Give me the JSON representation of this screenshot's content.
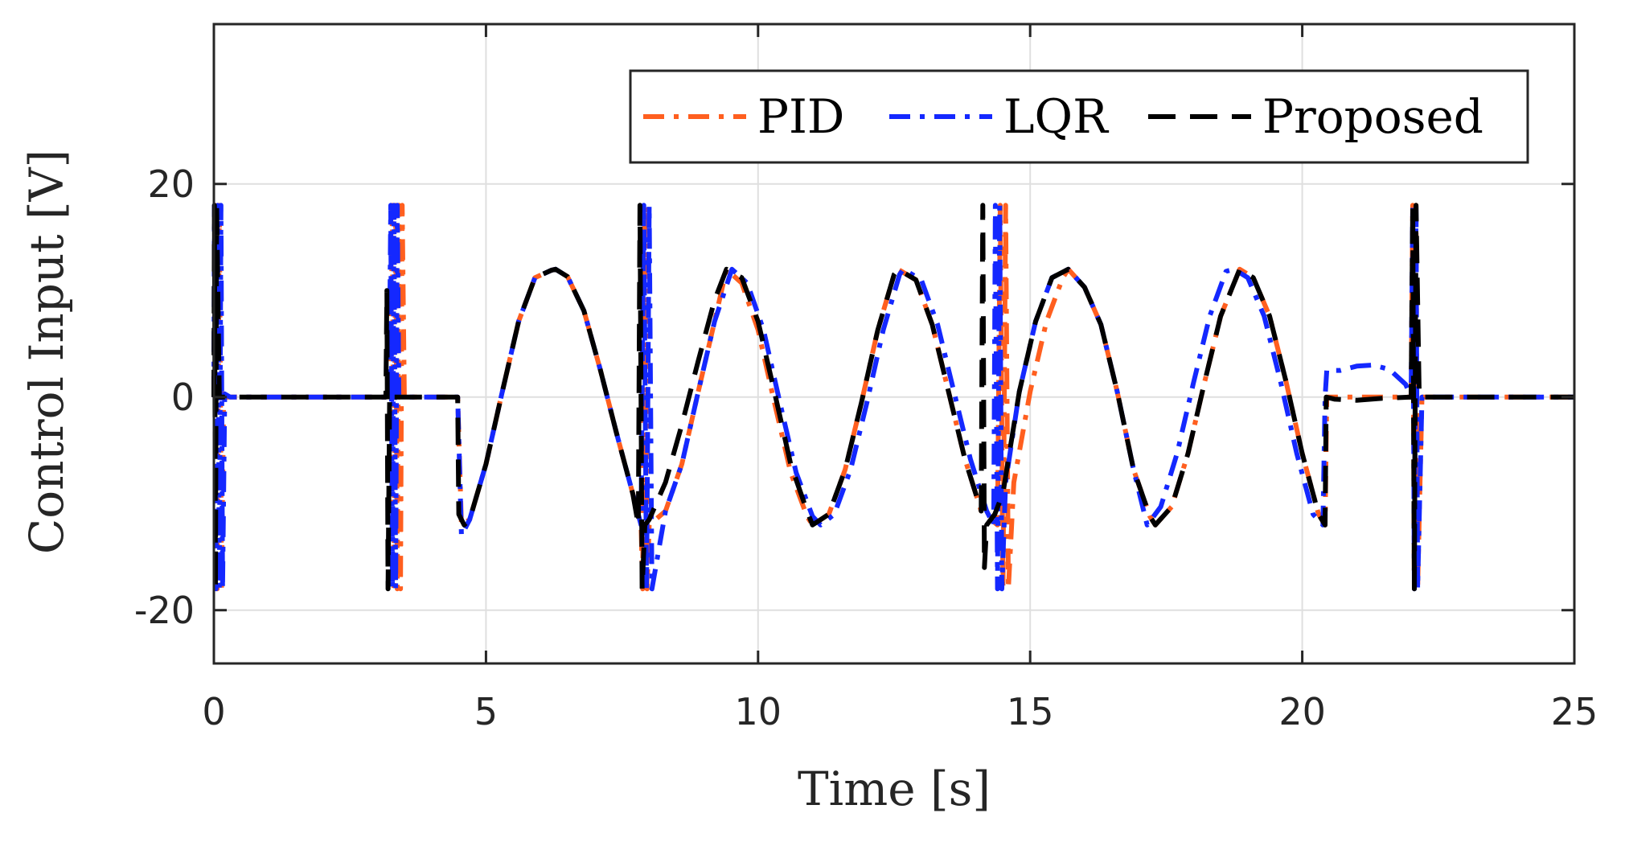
{
  "chart_data": {
    "type": "line",
    "xlabel": "Time [s]",
    "ylabel": "Control Input [V]",
    "xlim": [
      0,
      25
    ],
    "ylim": [
      -25,
      35
    ],
    "xticks": [
      0,
      5,
      10,
      15,
      20,
      25
    ],
    "yticks": [
      -20,
      0,
      20
    ],
    "xtick_labels": [
      "0",
      "5",
      "10",
      "15",
      "20",
      "25"
    ],
    "ytick_labels": [
      "-20",
      "0",
      "20"
    ],
    "grid": true,
    "legend_position": "top-right",
    "series": [
      {
        "name": "PID",
        "color": "#ff5f1f",
        "style": "dash-dot",
        "x": [
          0,
          0.02,
          0.06,
          0.1,
          0.14,
          0.18,
          0.25,
          3.25,
          3.28,
          3.31,
          3.34,
          3.37,
          3.4,
          3.43,
          3.46,
          3.5,
          4.48,
          4.55,
          4.7,
          5.0,
          5.3,
          5.6,
          5.9,
          6.2,
          6.28,
          6.5,
          6.8,
          7.1,
          7.4,
          7.7,
          7.85,
          7.88,
          7.92,
          7.96,
          8.0,
          8.3,
          8.6,
          8.9,
          9.2,
          9.42,
          9.7,
          10.0,
          10.3,
          10.6,
          10.9,
          11.0,
          11.3,
          11.6,
          11.9,
          12.2,
          12.5,
          12.57,
          12.9,
          13.2,
          13.5,
          13.8,
          14.1,
          14.4,
          14.45,
          14.5,
          14.55,
          14.6,
          14.7,
          15.0,
          15.3,
          15.6,
          15.7,
          16.0,
          16.3,
          16.6,
          16.9,
          17.2,
          17.3,
          17.6,
          17.9,
          18.2,
          18.5,
          18.85,
          19.1,
          19.4,
          19.7,
          20.0,
          20.3,
          20.42,
          20.45,
          20.6,
          21.0,
          21.5,
          22.0,
          22.03,
          22.06,
          22.09,
          22.12,
          22.2,
          25.0
        ],
        "y": [
          0,
          18,
          -18,
          18,
          -18,
          0.3,
          0,
          0,
          18,
          -18,
          18,
          -18,
          18,
          -18,
          18,
          0,
          0,
          -12,
          -11.5,
          -6.3,
          0.5,
          7.1,
          11.2,
          11.9,
          12.0,
          11.3,
          8.1,
          2.6,
          -3.4,
          -9.1,
          -12.0,
          -18,
          18,
          -18,
          -12,
          -10.7,
          -6.3,
          0.5,
          7.1,
          12.0,
          10.7,
          6.3,
          -0.5,
          -7.1,
          -11.2,
          -12.0,
          -11.0,
          -6.8,
          -0.5,
          6.3,
          11.5,
          12.0,
          11.0,
          6.8,
          0.5,
          -5.8,
          -10.7,
          -12.0,
          18,
          -18,
          18,
          -18,
          -8,
          0.5,
          7.1,
          11.2,
          12.0,
          10.3,
          6.8,
          0.5,
          -6.8,
          -11.2,
          -12.0,
          -10.3,
          -5.3,
          1.3,
          7.6,
          12.0,
          11.2,
          7.6,
          1.5,
          -5.3,
          -11.0,
          -12.0,
          0,
          0,
          0,
          0,
          0,
          18,
          -18,
          18,
          -18,
          0,
          0
        ]
      },
      {
        "name": "LQR",
        "color": "#1428ff",
        "style": "dash-dot",
        "x": [
          0,
          0.01,
          0.04,
          0.07,
          0.1,
          0.13,
          0.16,
          0.2,
          0.3,
          3.22,
          3.25,
          3.28,
          3.31,
          3.34,
          3.37,
          3.4,
          4.48,
          4.55,
          4.7,
          5.0,
          5.3,
          5.6,
          5.9,
          6.2,
          6.28,
          6.5,
          6.8,
          7.1,
          7.4,
          7.7,
          7.85,
          7.9,
          7.95,
          8.0,
          8.05,
          8.3,
          8.6,
          8.9,
          9.2,
          9.52,
          9.8,
          10.1,
          10.4,
          10.7,
          11.0,
          11.15,
          11.4,
          11.7,
          12.0,
          12.3,
          12.6,
          12.67,
          13.0,
          13.3,
          13.6,
          13.9,
          14.2,
          14.33,
          14.36,
          14.4,
          14.44,
          14.48,
          14.55,
          14.8,
          15.1,
          15.4,
          15.7,
          16.0,
          16.3,
          16.6,
          16.9,
          17.15,
          17.4,
          17.7,
          18.0,
          18.3,
          18.6,
          18.75,
          19.0,
          19.3,
          19.6,
          19.9,
          20.2,
          20.38,
          20.42,
          20.45,
          20.7,
          21.0,
          21.3,
          21.6,
          21.9,
          22.0,
          22.03,
          22.06,
          22.09,
          22.12,
          22.2,
          25.0
        ],
        "y": [
          0,
          18,
          -18,
          18,
          -18,
          18,
          -18,
          0.3,
          0,
          0,
          18,
          -18,
          18,
          -18,
          18,
          0,
          0,
          -13,
          -11.5,
          -6.3,
          0.5,
          7.1,
          11.2,
          11.9,
          12.0,
          11.3,
          8.1,
          2.6,
          -3.4,
          -9.1,
          -12.0,
          18,
          -18,
          18,
          -18,
          -10.7,
          -6.3,
          0.5,
          7.1,
          12.0,
          10.7,
          6.3,
          -0.5,
          -7.1,
          -11.2,
          -12.0,
          -11.0,
          -6.8,
          -0.5,
          6.3,
          11.5,
          12.0,
          11.0,
          6.8,
          0.5,
          -5.8,
          -10.7,
          -12.0,
          18,
          -18,
          18,
          -18,
          -8,
          0.5,
          7.1,
          11.2,
          12.0,
          10.3,
          6.8,
          0.5,
          -6.8,
          -12.0,
          -10.3,
          -5.3,
          1.3,
          7.6,
          11.8,
          12.0,
          11.2,
          7.6,
          1.5,
          -5.3,
          -11.0,
          -12.0,
          0,
          2.5,
          2.5,
          2.9,
          3.0,
          2.6,
          1.2,
          0,
          18,
          -18,
          18,
          -18,
          0,
          0
        ]
      },
      {
        "name": "Proposed",
        "color": "#000000",
        "style": "dashed",
        "x": [
          0,
          0.01,
          0.03,
          0.05,
          0.1,
          3.16,
          3.18,
          3.2,
          3.23,
          3.3,
          4.48,
          4.5,
          4.6,
          4.7,
          5.0,
          5.3,
          5.6,
          5.9,
          6.2,
          6.28,
          6.5,
          6.8,
          7.1,
          7.4,
          7.7,
          7.8,
          7.83,
          7.87,
          7.92,
          8.0,
          8.3,
          8.6,
          8.9,
          9.2,
          9.42,
          9.7,
          10.0,
          10.3,
          10.6,
          10.9,
          11.0,
          11.3,
          11.6,
          11.9,
          12.2,
          12.5,
          12.57,
          12.9,
          13.2,
          13.5,
          13.8,
          14.1,
          14.13,
          14.16,
          14.2,
          14.35,
          14.5,
          14.8,
          15.1,
          15.4,
          15.7,
          16.0,
          16.3,
          16.6,
          16.9,
          17.2,
          17.3,
          17.6,
          17.9,
          18.2,
          18.5,
          18.85,
          19.1,
          19.4,
          19.7,
          20.0,
          20.3,
          20.42,
          20.44,
          20.6,
          21.0,
          21.5,
          22.0,
          22.03,
          22.06,
          22.09,
          22.15,
          25.0
        ],
        "y": [
          0,
          18,
          -18,
          18,
          0,
          0,
          10,
          -18,
          0.3,
          0,
          0,
          -11,
          -12,
          -11.5,
          -6.3,
          0.5,
          7.1,
          11.2,
          11.9,
          12.0,
          11.3,
          8.1,
          2.6,
          -3.4,
          -9.1,
          -12.0,
          18,
          -18,
          -12,
          -11.5,
          -8.0,
          -2.6,
          3.4,
          9.1,
          12.0,
          11.2,
          7.1,
          0.5,
          -6.3,
          -10.7,
          -12.0,
          -11.0,
          -6.8,
          -0.5,
          6.3,
          11.5,
          12.0,
          11.0,
          6.8,
          0.5,
          -5.8,
          -10.7,
          18,
          -16,
          -12,
          -11,
          -9,
          0.5,
          7.1,
          11.2,
          12.0,
          10.3,
          6.8,
          0.5,
          -6.8,
          -11.2,
          -12.0,
          -10.3,
          -5.3,
          1.3,
          7.6,
          12.0,
          11.2,
          7.6,
          1.5,
          -5.3,
          -11.0,
          -12.0,
          0,
          -0.2,
          -0.3,
          -0.1,
          0,
          18,
          -18,
          18,
          0,
          0
        ]
      }
    ]
  }
}
